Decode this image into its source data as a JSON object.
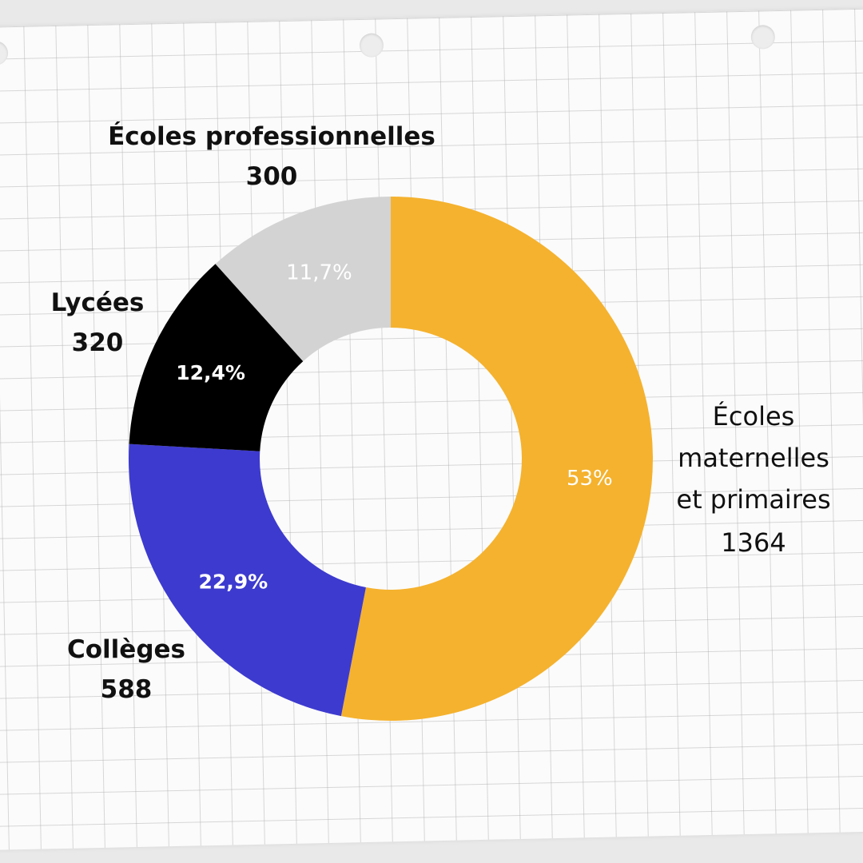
{
  "chart_data": {
    "type": "pie",
    "title": "",
    "categories": [
      "Écoles maternelles et primaires",
      "Collèges",
      "Lycées",
      "Écoles professionnelles"
    ],
    "values": [
      1364,
      588,
      320,
      300
    ],
    "percent_labels": [
      "53%",
      "22,9%",
      "12,4%",
      "11,7%"
    ],
    "label_lines": [
      [
        "Écoles",
        "maternelles",
        "et primaires"
      ],
      [
        "Collèges"
      ],
      [
        "Lycées"
      ],
      [
        "Écoles professionnelles"
      ]
    ],
    "value_labels": [
      "1364",
      "588",
      "320",
      "300"
    ],
    "colors": [
      "#f5b22e",
      "#3d3acf",
      "#000000",
      "#d3d3d3"
    ],
    "donut": true,
    "legend": "none"
  }
}
